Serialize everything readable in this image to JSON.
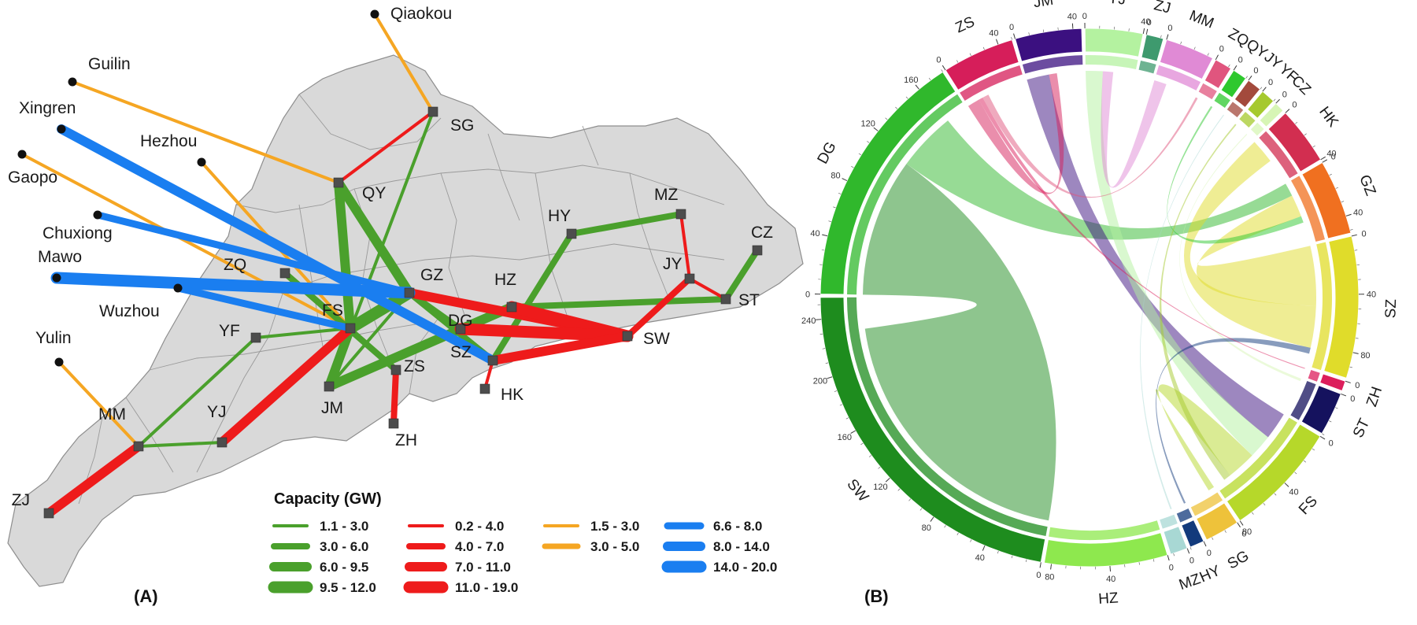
{
  "panel_a": {
    "label": "(A)",
    "legend_title": "Capacity (GW)",
    "colors": {
      "green": "#4aa02c",
      "red": "#ee1b1b",
      "orange": "#f5a623",
      "blue": "#1a7ef0",
      "land": "#d9d9d9",
      "node": "#4d4d4d"
    },
    "legend": [
      {
        "color": "green",
        "label": "1.1 - 3.0"
      },
      {
        "color": "green",
        "label": "3.0 - 6.0"
      },
      {
        "color": "green",
        "label": "6.0 - 9.5"
      },
      {
        "color": "green",
        "label": "9.5 - 12.0"
      },
      {
        "color": "red",
        "label": "0.2 - 4.0"
      },
      {
        "color": "red",
        "label": "4.0 - 7.0"
      },
      {
        "color": "red",
        "label": "7.0 - 11.0"
      },
      {
        "color": "red",
        "label": "11.0 - 19.0"
      },
      {
        "color": "orange",
        "label": "1.5 - 3.0"
      },
      {
        "color": "orange",
        "label": "3.0 - 5.0"
      },
      {
        "color": "blue",
        "label": "6.6 - 8.0"
      },
      {
        "color": "blue",
        "label": "8.0 - 14.0"
      },
      {
        "color": "blue",
        "label": "14.0 - 20.0"
      }
    ],
    "nodes": [
      "SG",
      "QY",
      "HY",
      "MZ",
      "CZ",
      "ZQ",
      "GZ",
      "HZ",
      "JY",
      "ST",
      "YF",
      "FS",
      "DG",
      "SW",
      "SZ",
      "ZS",
      "HK",
      "JM",
      "ZH",
      "YJ",
      "MM",
      "ZJ"
    ],
    "external": [
      "Qiaokou",
      "Guilin",
      "Xingren",
      "Hezhou",
      "Gaopo",
      "Chuxiong",
      "Mawo",
      "Wuzhou",
      "Yulin"
    ],
    "links": [
      {
        "from": "Qiaokou",
        "to": "SG",
        "color": "orange",
        "class": 1
      },
      {
        "from": "Guilin",
        "to": "QY",
        "color": "orange",
        "class": 1
      },
      {
        "from": "Hezhou",
        "to": "FS",
        "color": "orange",
        "class": 1
      },
      {
        "from": "Gaopo",
        "to": "FS",
        "color": "orange",
        "class": 1
      },
      {
        "from": "Yulin",
        "to": "MM",
        "color": "orange",
        "class": 1
      },
      {
        "from": "Xingren",
        "to": "SZ",
        "color": "blue",
        "class": 2
      },
      {
        "from": "Chuxiong",
        "to": "GZ",
        "color": "blue",
        "class": 1
      },
      {
        "from": "Mawo",
        "to": "GZ",
        "color": "blue",
        "class": 3
      },
      {
        "from": "Wuzhou",
        "to": "FS",
        "color": "blue",
        "class": 1
      },
      {
        "from": "SG",
        "to": "QY",
        "color": "red",
        "class": 1
      },
      {
        "from": "SG",
        "to": "JM",
        "color": "green",
        "class": 1
      },
      {
        "from": "QY",
        "to": "FS",
        "color": "green",
        "class": 3
      },
      {
        "from": "QY",
        "to": "GZ",
        "color": "green",
        "class": 3
      },
      {
        "from": "ZQ",
        "to": "ZS",
        "color": "green",
        "class": 2
      },
      {
        "from": "ZQ",
        "to": "FS",
        "color": "green",
        "class": 1
      },
      {
        "from": "YF",
        "to": "FS",
        "color": "green",
        "class": 1
      },
      {
        "from": "FS",
        "to": "GZ",
        "color": "green",
        "class": 4
      },
      {
        "from": "FS",
        "to": "JM",
        "color": "green",
        "class": 3
      },
      {
        "from": "FS",
        "to": "YJ",
        "color": "red",
        "class": 3
      },
      {
        "from": "GZ",
        "to": "JM",
        "color": "green",
        "class": 1
      },
      {
        "from": "GZ",
        "to": "SZ",
        "color": "green",
        "class": 2
      },
      {
        "from": "GZ",
        "to": "SW",
        "color": "red",
        "class": 3
      },
      {
        "from": "GZ",
        "to": "DG",
        "color": "green",
        "class": 2
      },
      {
        "from": "JM",
        "to": "HZ",
        "color": "green",
        "class": 3
      },
      {
        "from": "HY",
        "to": "MZ",
        "color": "green",
        "class": 2
      },
      {
        "from": "HY",
        "to": "SZ",
        "color": "green",
        "class": 2
      },
      {
        "from": "MZ",
        "to": "JY",
        "color": "red",
        "class": 1
      },
      {
        "from": "JY",
        "to": "ST",
        "color": "red",
        "class": 1
      },
      {
        "from": "JY",
        "to": "SW",
        "color": "red",
        "class": 2
      },
      {
        "from": "CZ",
        "to": "ST",
        "color": "green",
        "class": 2
      },
      {
        "from": "HZ",
        "to": "ST",
        "color": "green",
        "class": 2
      },
      {
        "from": "HZ",
        "to": "SW",
        "color": "red",
        "class": 4
      },
      {
        "from": "DG",
        "to": "SW",
        "color": "red",
        "class": 4
      },
      {
        "from": "SW",
        "to": "SZ",
        "color": "red",
        "class": 3
      },
      {
        "from": "SZ",
        "to": "HK",
        "color": "red",
        "class": 1
      },
      {
        "from": "ZS",
        "to": "ZH",
        "color": "red",
        "class": 2
      },
      {
        "from": "MM",
        "to": "YF",
        "color": "green",
        "class": 1
      },
      {
        "from": "MM",
        "to": "YJ",
        "color": "green",
        "class": 1
      },
      {
        "from": "MM",
        "to": "ZJ",
        "color": "red",
        "class": 3
      }
    ]
  },
  "panel_b": {
    "label": "(B)",
    "sectors": [
      {
        "name": "JM",
        "color": "#3b1080",
        "size": 46
      },
      {
        "name": "YJ",
        "color": "#b4f2a0",
        "size": 40
      },
      {
        "name": "ZJ",
        "color": "#3e9a6e",
        "size": 12
      },
      {
        "name": "MM",
        "color": "#e08ad5",
        "size": 34
      },
      {
        "name": "ZQ",
        "color": "#e0557e",
        "size": 12
      },
      {
        "name": "QY",
        "color": "#2ec82e",
        "size": 10
      },
      {
        "name": "JY",
        "color": "#a34a3c",
        "size": 10
      },
      {
        "name": "YF",
        "color": "#a6c92e",
        "size": 10
      },
      {
        "name": "CZ",
        "color": "#d7f5b5",
        "size": 7
      },
      {
        "name": "HK",
        "color": "#d22e50",
        "size": 40
      },
      {
        "name": "GZ",
        "color": "#f07020",
        "size": 52
      },
      {
        "name": "SZ",
        "color": "#e0dc2a",
        "size": 98
      },
      {
        "name": "ZH",
        "color": "#dc1e5c",
        "size": 7
      },
      {
        "name": "ST",
        "color": "#15125e",
        "size": 30
      },
      {
        "name": "FS",
        "color": "#b6d82a",
        "size": 80
      },
      {
        "name": "SG",
        "color": "#eec23a",
        "size": 24
      },
      {
        "name": "HY",
        "color": "#123a7c",
        "size": 10
      },
      {
        "name": "MZ",
        "color": "#a8d8d4",
        "size": 12
      },
      {
        "name": "HZ",
        "color": "#8ee84e",
        "size": 85
      },
      {
        "name": "SW",
        "color": "#1e8c1e",
        "size": 255
      },
      {
        "name": "DG",
        "color": "#30b82c",
        "size": 180
      },
      {
        "name": "ZS",
        "color": "#d61e5a",
        "size": 50
      }
    ]
  }
}
